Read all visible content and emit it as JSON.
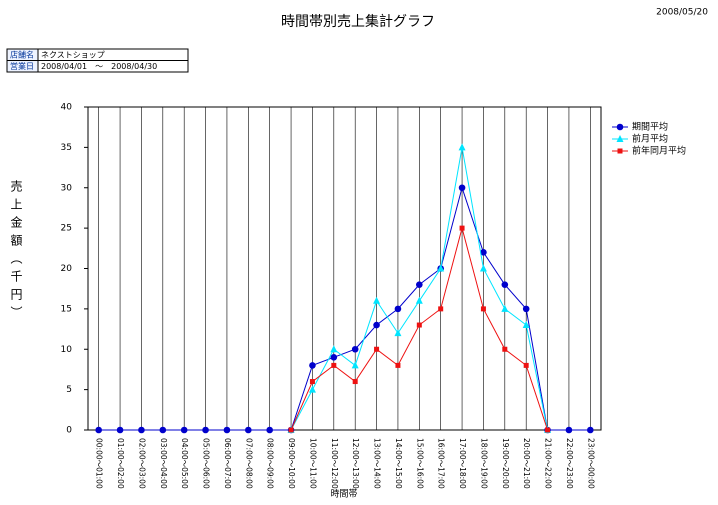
{
  "header": {
    "date": "2008/05/20",
    "info": [
      [
        "店舗名",
        "ネクストショップ"
      ],
      [
        "営業日",
        "2008/04/01　～　2008/04/30"
      ]
    ]
  },
  "chart_data": {
    "type": "line",
    "title": "時間帯別売上集計グラフ",
    "y_label": "売上金額（千円）",
    "x_label": "時間帯",
    "categories": [
      "00:00～01:00",
      "01:00～02:00",
      "02:00～03:00",
      "03:00～04:00",
      "04:00～05:00",
      "05:00～06:00",
      "06:00～07:00",
      "07:00～08:00",
      "08:00～09:00",
      "09:00～10:00",
      "10:00～11:00",
      "11:00～12:00",
      "12:00～13:00",
      "13:00～14:00",
      "14:00～15:00",
      "15:00～16:00",
      "16:00～17:00",
      "17:00～18:00",
      "18:00～19:00",
      "19:00～20:00",
      "20:00～21:00",
      "21:00～22:00",
      "22:00～23:00",
      "23:00～00:00"
    ],
    "series": [
      {
        "name": "期間平均",
        "color": "#0000cc",
        "marker": "circle",
        "values": [
          0,
          0,
          0,
          0,
          0,
          0,
          0,
          0,
          0,
          0,
          8,
          9,
          10,
          13,
          15,
          18,
          20,
          30,
          22,
          18,
          15,
          0,
          0,
          0
        ]
      },
      {
        "name": "前月平均",
        "color": "#00e5ff",
        "marker": "triangle",
        "values": [
          null,
          null,
          null,
          null,
          null,
          null,
          null,
          null,
          null,
          0,
          5,
          10,
          8,
          16,
          12,
          16,
          20,
          35,
          20,
          15,
          13,
          0,
          null,
          null
        ]
      },
      {
        "name": "前年同月平均",
        "color": "#ee1111",
        "marker": "square",
        "values": [
          null,
          null,
          null,
          null,
          null,
          null,
          null,
          null,
          null,
          0,
          6,
          8,
          6,
          10,
          8,
          13,
          15,
          25,
          15,
          10,
          8,
          0,
          null,
          null
        ]
      }
    ],
    "ylim": [
      0,
      40
    ],
    "yticks": [
      0,
      5,
      10,
      15,
      20,
      25,
      30,
      35,
      40
    ],
    "grid": "x",
    "legend": "right"
  }
}
